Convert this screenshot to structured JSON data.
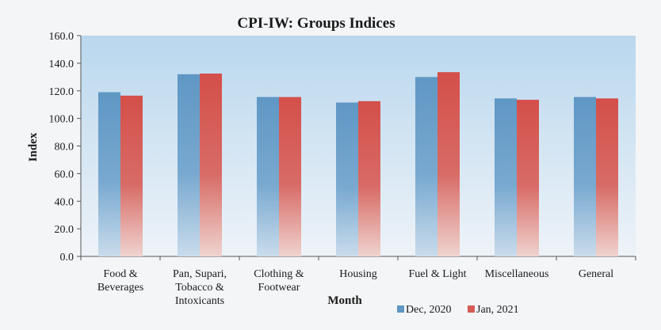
{
  "chart_data": {
    "type": "bar",
    "title": "CPI-IW: Groups Indices",
    "xlabel": "Month",
    "ylabel": "Index",
    "ylim": [
      0,
      160
    ],
    "yticks": [
      "0.0",
      "20.0",
      "40.0",
      "60.0",
      "80.0",
      "100.0",
      "120.0",
      "140.0",
      "160.0"
    ],
    "categories": [
      [
        "Food &",
        "Beverages"
      ],
      [
        "Pan, Supari,",
        "Tobacco &",
        "Intoxicants"
      ],
      [
        "Clothing &",
        "Footwear"
      ],
      [
        "Housing"
      ],
      [
        "Fuel & Light"
      ],
      [
        "Miscellaneous"
      ],
      [
        "General"
      ]
    ],
    "series": [
      {
        "name": "Dec, 2020",
        "color": "#5f97c4",
        "values": [
          119.0,
          132.0,
          115.5,
          111.5,
          130.0,
          114.5,
          115.5
        ]
      },
      {
        "name": "Jan, 2021",
        "color": "#d65a55",
        "values": [
          116.5,
          132.5,
          115.5,
          112.5,
          133.5,
          113.5,
          114.5
        ]
      }
    ],
    "grid": false,
    "legend": "bottom-right"
  }
}
